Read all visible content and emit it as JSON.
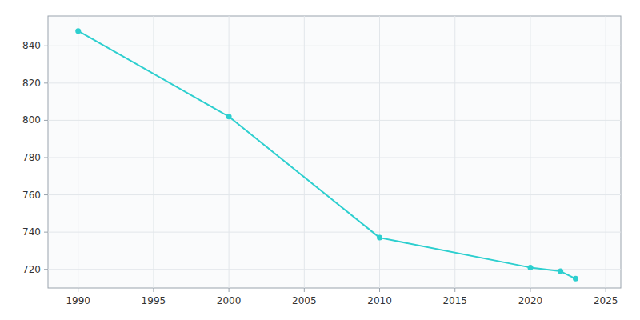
{
  "chart_data": {
    "type": "line",
    "x": [
      1990,
      2000,
      2010,
      2020,
      2022,
      2023
    ],
    "values": [
      848,
      802,
      737,
      721,
      719,
      715
    ],
    "color": "#2dcfcf",
    "marker": "circle",
    "xlim": [
      1988,
      2026
    ],
    "ylim": [
      710,
      856
    ],
    "xticks": [
      1990,
      1995,
      2000,
      2005,
      2010,
      2015,
      2020,
      2025
    ],
    "yticks": [
      720,
      740,
      760,
      780,
      800,
      820,
      840
    ],
    "grid": true
  }
}
